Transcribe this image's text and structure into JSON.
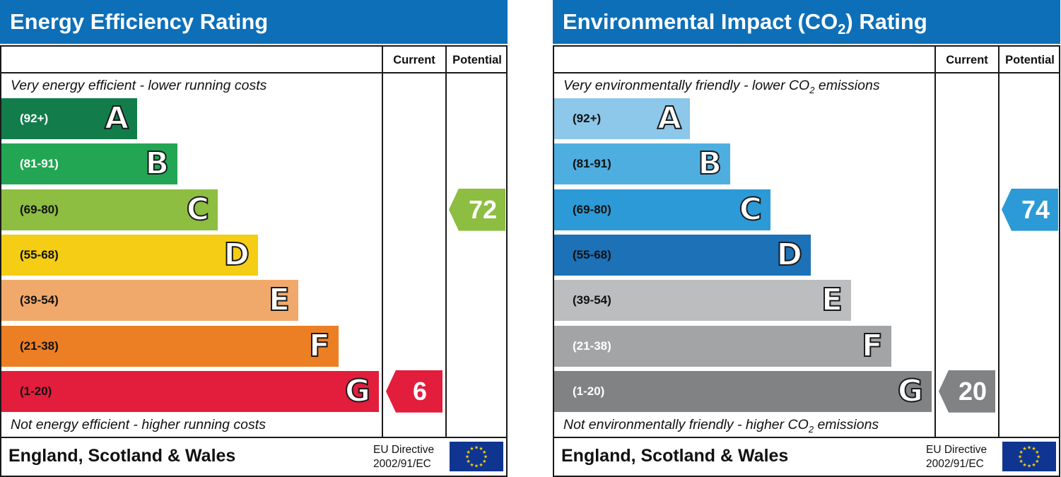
{
  "chart_data": [
    {
      "type": "bar",
      "title": "Energy Efficiency Rating",
      "columns": [
        "Current",
        "Potential"
      ],
      "top_note": "Very energy efficient - lower running costs",
      "bottom_note": "Not energy efficient - higher running costs",
      "bands": [
        {
          "letter": "A",
          "range": "(92+)",
          "color": "#127d4b",
          "text_color": "#ffffff"
        },
        {
          "letter": "B",
          "range": "(81-91)",
          "color": "#22a653",
          "text_color": "#ffffff"
        },
        {
          "letter": "C",
          "range": "(69-80)",
          "color": "#8dbd41",
          "text_color": "#111111"
        },
        {
          "letter": "D",
          "range": "(55-68)",
          "color": "#f4cd14",
          "text_color": "#111111"
        },
        {
          "letter": "E",
          "range": "(39-54)",
          "color": "#f1a96b",
          "text_color": "#111111"
        },
        {
          "letter": "F",
          "range": "(21-38)",
          "color": "#ec7f24",
          "text_color": "#111111"
        },
        {
          "letter": "G",
          "range": "(1-20)",
          "color": "#e31d3c",
          "text_color": "#111111"
        }
      ],
      "current": {
        "value": 6,
        "band": "G",
        "color": "#e31d3c"
      },
      "potential": {
        "value": 72,
        "band": "C",
        "color": "#8dbd41"
      },
      "footer_country": "England, Scotland & Wales",
      "footer_directive_line1": "EU Directive",
      "footer_directive_line2": "2002/91/EC"
    },
    {
      "type": "bar",
      "title": "Environmental Impact (CO",
      "title_sub": "2",
      "title_end": ") Rating",
      "columns": [
        "Current",
        "Potential"
      ],
      "top_note": "Very environmentally friendly - lower CO",
      "top_note_sub": "2",
      "top_note_end": " emissions",
      "bottom_note": "Not environmentally friendly - higher CO",
      "bottom_note_sub": "2",
      "bottom_note_end": " emissions",
      "bands": [
        {
          "letter": "A",
          "range": "(92+)",
          "color": "#8dc7e9",
          "text_color": "#111111"
        },
        {
          "letter": "B",
          "range": "(81-91)",
          "color": "#4eaee0",
          "text_color": "#111111"
        },
        {
          "letter": "C",
          "range": "(69-80)",
          "color": "#2c9ad6",
          "text_color": "#111111"
        },
        {
          "letter": "D",
          "range": "(55-68)",
          "color": "#1c71b7",
          "text_color": "#111111"
        },
        {
          "letter": "E",
          "range": "(39-54)",
          "color": "#bcbdbf",
          "text_color": "#111111"
        },
        {
          "letter": "F",
          "range": "(21-38)",
          "color": "#a3a4a6",
          "text_color": "#ffffff"
        },
        {
          "letter": "G",
          "range": "(1-20)",
          "color": "#818284",
          "text_color": "#ffffff"
        }
      ],
      "current": {
        "value": 20,
        "band": "G",
        "color": "#818284"
      },
      "potential": {
        "value": 74,
        "band": "C",
        "color": "#2c9ad6"
      },
      "footer_country": "England, Scotland & Wales",
      "footer_directive_line1": "EU Directive",
      "footer_directive_line2": "2002/91/EC"
    }
  ]
}
